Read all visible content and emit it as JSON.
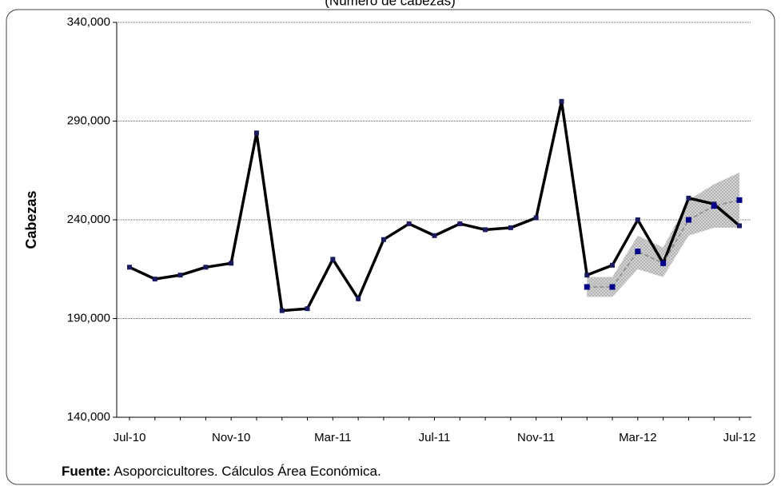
{
  "chart_data": {
    "type": "line",
    "title": "(Número de cabezas)",
    "y_label": "Cabezas",
    "source_label": "Fuente:",
    "source_text": "Asoporcicultores. Cálculos Área Económica.",
    "categories": [
      "Jul-10",
      null,
      null,
      null,
      "Nov-10",
      null,
      null,
      null,
      "Mar-11",
      null,
      null,
      null,
      "Jul-11",
      null,
      null,
      null,
      "Nov-11",
      null,
      null,
      null,
      "Mar-12",
      null,
      null,
      null,
      "Jul-12"
    ],
    "series": [
      {
        "color": "#000000",
        "marker_color": "#1a1a5e",
        "values": [
          216000,
          210000,
          212000,
          216000,
          218000,
          284000,
          194000,
          195000,
          220000,
          200000,
          230000,
          238000,
          232000,
          238000,
          235000,
          236000,
          241000,
          300000,
          212000,
          217000,
          240000,
          218000,
          251000,
          248000,
          237000
        ]
      },
      {
        "color": "#888888",
        "marker_color": "#00008b",
        "dashed": true,
        "values": [
          null,
          null,
          null,
          null,
          null,
          null,
          null,
          null,
          null,
          null,
          null,
          null,
          null,
          null,
          null,
          null,
          null,
          null,
          206000,
          206000,
          224000,
          218000,
          240000,
          247000,
          250000
        ]
      }
    ],
    "band": {
      "color": "#c8c8c8",
      "lower": [
        null,
        null,
        null,
        null,
        null,
        null,
        null,
        null,
        null,
        null,
        null,
        null,
        null,
        null,
        null,
        null,
        null,
        null,
        201000,
        201000,
        215000,
        211000,
        232000,
        236000,
        236000
      ],
      "upper": [
        null,
        null,
        null,
        null,
        null,
        null,
        null,
        null,
        null,
        null,
        null,
        null,
        null,
        null,
        null,
        null,
        null,
        null,
        211000,
        211000,
        232000,
        226000,
        250000,
        258000,
        264000
      ]
    },
    "ylim": [
      140000,
      340000
    ],
    "yticks": [
      {
        "value": 140000,
        "label": "140,000"
      },
      {
        "value": 190000,
        "label": "190,000"
      },
      {
        "value": 240000,
        "label": "240,000"
      },
      {
        "value": 290000,
        "label": "290,000"
      },
      {
        "value": 340000,
        "label": "340,000"
      }
    ],
    "grid": true
  }
}
